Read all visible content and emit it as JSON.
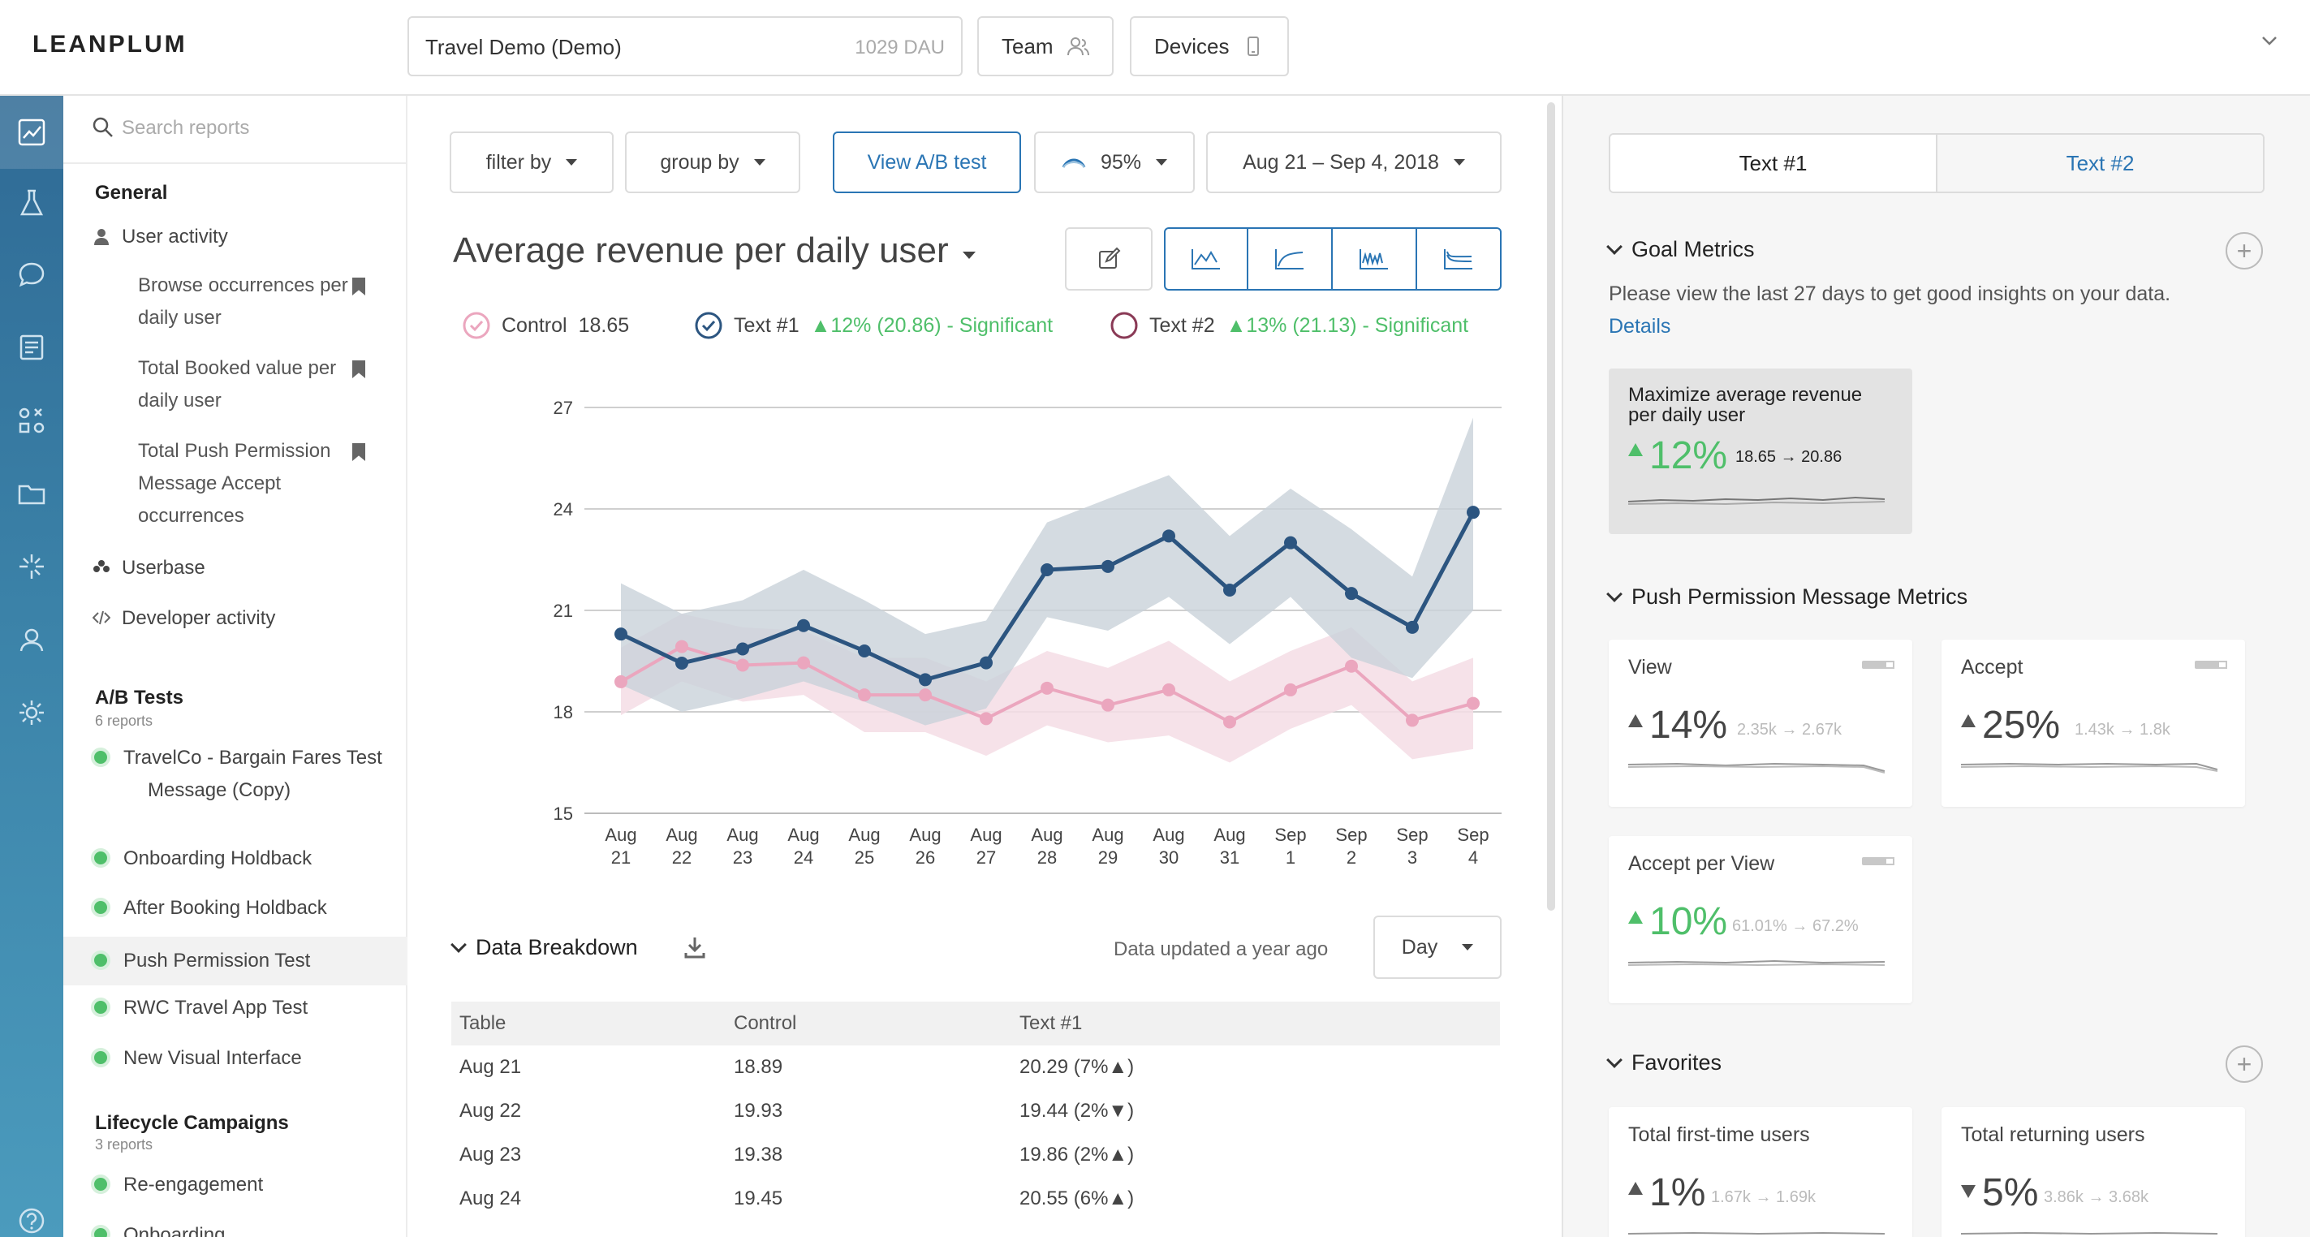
{
  "header": {
    "logo": "LEANPLUM",
    "app_name": "Travel Demo (Demo)",
    "app_dau": "1029 DAU",
    "team_label": "Team",
    "devices_label": "Devices"
  },
  "sidebar": {
    "search_placeholder": "Search reports",
    "general": {
      "title": "General",
      "user_activity": "User activity",
      "reports": [
        "Browse occurrences per daily user",
        "Total Booked value per daily user",
        "Total Push Permission Message Accept occurrences"
      ],
      "userbase": "Userbase",
      "developer_activity": "Developer activity"
    },
    "ab_tests": {
      "title": "A/B Tests",
      "count": "6 reports",
      "items": [
        "TravelCo - Bargain Fares Test Message (Copy)",
        "Onboarding Holdback",
        "After Booking Holdback",
        "Push Permission Test",
        "RWC Travel App Test",
        "New Visual Interface"
      ]
    },
    "lifecycle": {
      "title": "Lifecycle Campaigns",
      "count": "3 reports",
      "items": [
        "Re-engagement",
        "Onboarding"
      ]
    }
  },
  "toolbar": {
    "filter_by": "filter by",
    "group_by": "group by",
    "view_ab": "View A/B test",
    "confidence": "95%",
    "date_range": "Aug 21 – Sep 4, 2018"
  },
  "chart_header": {
    "title": "Average revenue per daily user",
    "legend": {
      "control_label": "Control",
      "control_value": "18.65",
      "text1_label": "Text #1",
      "text1_change": "▲12% (20.86) - Significant",
      "text2_label": "Text #2",
      "text2_change": "▲13% (21.13) - Significant"
    }
  },
  "chart_data": {
    "type": "line",
    "title": "Average revenue per daily user",
    "x": [
      "Aug 21",
      "Aug 22",
      "Aug 23",
      "Aug 24",
      "Aug 25",
      "Aug 26",
      "Aug 27",
      "Aug 28",
      "Aug 29",
      "Aug 30",
      "Aug 31",
      "Sep 1",
      "Sep 2",
      "Sep 3",
      "Sep 4"
    ],
    "ylim": [
      15,
      27
    ],
    "yticks": [
      15,
      18,
      21,
      24,
      27
    ],
    "grid": true,
    "colors": {
      "text1": "#2c5580",
      "control": "#eba6be",
      "text1_band": "#c9d2da",
      "control_band": "#f5dde5"
    },
    "series": [
      {
        "name": "Text #1",
        "values": [
          20.3,
          19.44,
          19.86,
          20.55,
          19.8,
          18.95,
          19.45,
          22.2,
          22.3,
          23.2,
          21.6,
          23.0,
          21.5,
          20.5,
          23.9
        ],
        "band_upper": [
          21.8,
          20.9,
          21.3,
          22.2,
          21.3,
          20.3,
          20.7,
          23.6,
          24.3,
          25.0,
          23.2,
          24.6,
          23.4,
          22.0,
          26.7
        ],
        "band_lower": [
          18.8,
          18.0,
          18.4,
          18.9,
          18.3,
          17.6,
          18.1,
          20.8,
          20.4,
          21.4,
          20.0,
          21.4,
          19.6,
          19.0,
          21.0
        ]
      },
      {
        "name": "Control",
        "values": [
          18.89,
          19.93,
          19.38,
          19.45,
          18.5,
          18.5,
          17.8,
          18.7,
          18.2,
          18.65,
          17.7,
          18.65,
          19.35,
          17.75,
          18.25
        ],
        "band_upper": [
          19.9,
          20.9,
          20.5,
          20.4,
          19.6,
          19.6,
          18.9,
          19.8,
          19.3,
          20.1,
          18.9,
          19.8,
          20.5,
          18.9,
          19.6
        ],
        "band_lower": [
          17.9,
          18.9,
          18.3,
          18.5,
          17.4,
          17.4,
          16.7,
          17.6,
          17.1,
          17.3,
          16.5,
          17.5,
          18.2,
          16.6,
          16.9
        ]
      }
    ]
  },
  "breakdown": {
    "title": "Data Breakdown",
    "updated": "Data updated a year ago",
    "period": "Day",
    "columns": [
      "Table",
      "Control",
      "Text #1"
    ],
    "rows": [
      [
        "Aug 21",
        "18.89",
        "20.29 (7%▲)"
      ],
      [
        "Aug 22",
        "19.93",
        "19.44 (2%▼)"
      ],
      [
        "Aug 23",
        "19.38",
        "19.86 (2%▲)"
      ],
      [
        "Aug 24",
        "19.45",
        "20.55 (6%▲)"
      ]
    ]
  },
  "right_panel": {
    "tabs": [
      "Text #1",
      "Text #2"
    ],
    "goal_metrics": {
      "title": "Goal Metrics",
      "note": "Please view the last 27 days to get good insights on your data.",
      "details_link": "Details",
      "card": {
        "title": "Maximize average revenue per daily user",
        "percent": "12%",
        "range": "18.65 → 20.86"
      }
    },
    "push_metrics": {
      "title": "Push Permission Message Metrics",
      "cards": [
        {
          "title": "View",
          "percent": "14%",
          "range": "2.35k → 2.67k"
        },
        {
          "title": "Accept",
          "percent": "25%",
          "range": "1.43k → 1.8k"
        },
        {
          "title": "Accept per View",
          "percent": "10%",
          "range": "61.01% → 67.2%"
        }
      ]
    },
    "favorites": {
      "title": "Favorites",
      "cards": [
        {
          "title": "Total first-time users",
          "percent": "1%",
          "range": "1.67k → 1.69k"
        },
        {
          "title": "Total returning users",
          "percent": "5%",
          "range": "3.86k → 3.68k"
        }
      ]
    }
  }
}
